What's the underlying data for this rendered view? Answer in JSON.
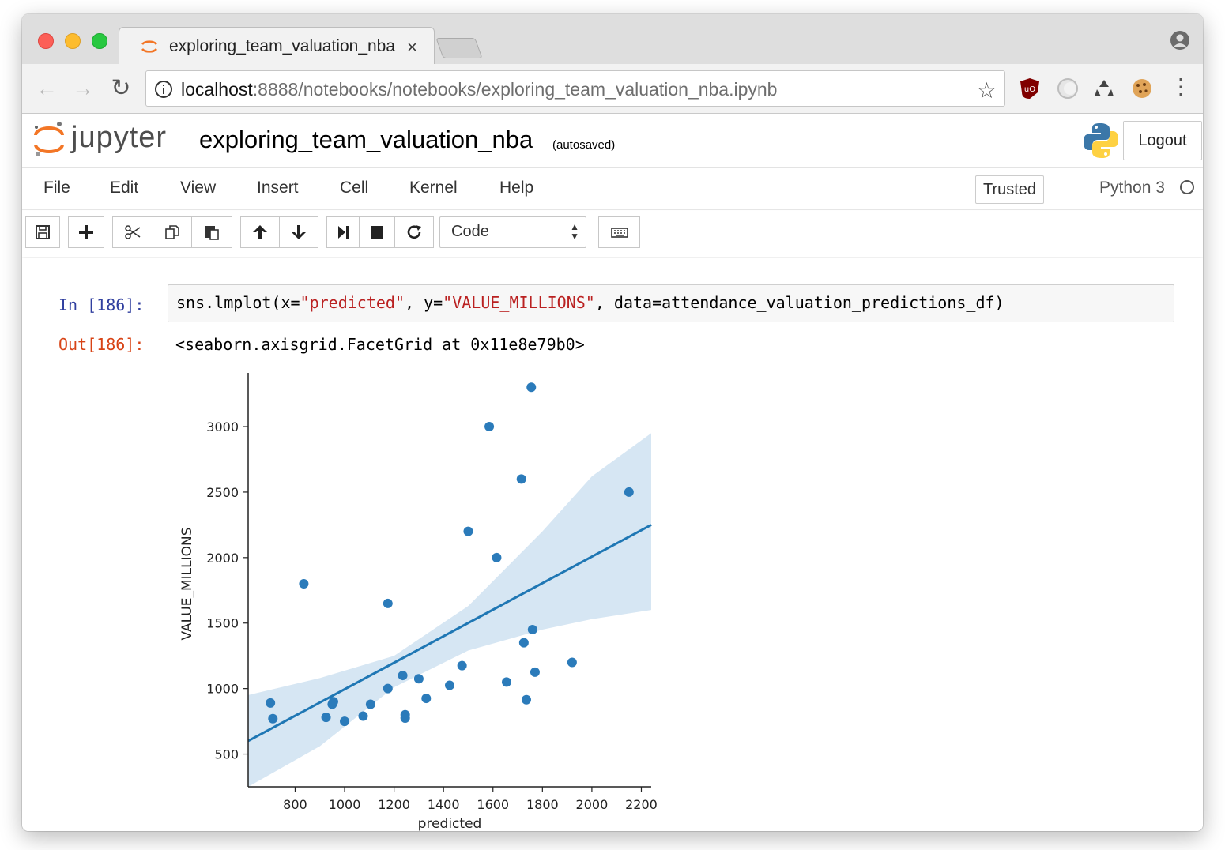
{
  "browser": {
    "tab_title": "exploring_team_valuation_nba",
    "tab_close": "×",
    "url_host": "localhost",
    "url_rest": ":8888/notebooks/notebooks/exploring_team_valuation_nba.ipynb"
  },
  "jupyter": {
    "wordmark": "jupyter",
    "notebook_name": "exploring_team_valuation_nba",
    "autosave_status": "(autosaved)",
    "logout_label": "Logout"
  },
  "menubar": {
    "items": [
      "File",
      "Edit",
      "View",
      "Insert",
      "Cell",
      "Kernel",
      "Help"
    ],
    "trusted_label": "Trusted",
    "kernel_name": "Python 3"
  },
  "toolbar": {
    "cell_type": "Code"
  },
  "cell": {
    "in_prompt": "In [186]:",
    "code_prefix": "sns.lmplot(x=",
    "code_x": "\"predicted\"",
    "code_mid": ", y=",
    "code_y": "\"VALUE_MILLIONS\"",
    "code_suffix": ", data=attendance_valuation_predictions_df)",
    "out_prompt": "Out[186]:",
    "out_text": "<seaborn.axisgrid.FacetGrid at 0x11e8e79b0>"
  },
  "colors": {
    "point": "#2b7bba",
    "line": "#1f77b4",
    "ci_band": "#d6e6f3"
  },
  "chart_data": {
    "type": "scatter",
    "title": "",
    "xlabel": "predicted",
    "ylabel": "VALUE_MILLIONS",
    "xlim": [
      610,
      2240
    ],
    "ylim": [
      250,
      3350
    ],
    "x_ticks": [
      800,
      1000,
      1200,
      1400,
      1600,
      1800,
      2000,
      2200
    ],
    "y_ticks": [
      500,
      1000,
      1500,
      2000,
      2500,
      3000
    ],
    "points": [
      {
        "x": 700,
        "y": 890
      },
      {
        "x": 710,
        "y": 770
      },
      {
        "x": 835,
        "y": 1800
      },
      {
        "x": 925,
        "y": 780
      },
      {
        "x": 950,
        "y": 880
      },
      {
        "x": 955,
        "y": 900
      },
      {
        "x": 1000,
        "y": 750
      },
      {
        "x": 1075,
        "y": 790
      },
      {
        "x": 1105,
        "y": 880
      },
      {
        "x": 1175,
        "y": 1000
      },
      {
        "x": 1175,
        "y": 1650
      },
      {
        "x": 1235,
        "y": 1100
      },
      {
        "x": 1245,
        "y": 800
      },
      {
        "x": 1245,
        "y": 775
      },
      {
        "x": 1300,
        "y": 1075
      },
      {
        "x": 1330,
        "y": 925
      },
      {
        "x": 1425,
        "y": 1025
      },
      {
        "x": 1475,
        "y": 1175
      },
      {
        "x": 1500,
        "y": 2200
      },
      {
        "x": 1585,
        "y": 3000
      },
      {
        "x": 1615,
        "y": 2000
      },
      {
        "x": 1655,
        "y": 1050
      },
      {
        "x": 1715,
        "y": 2600
      },
      {
        "x": 1725,
        "y": 1350
      },
      {
        "x": 1735,
        "y": 915
      },
      {
        "x": 1755,
        "y": 3300
      },
      {
        "x": 1760,
        "y": 1450
      },
      {
        "x": 1770,
        "y": 1125
      },
      {
        "x": 1920,
        "y": 1200
      },
      {
        "x": 2150,
        "y": 2500
      }
    ],
    "regression_line": [
      {
        "x": 610,
        "y": 600
      },
      {
        "x": 2240,
        "y": 2250
      }
    ],
    "ci_upper": [
      {
        "x": 610,
        "y": 950
      },
      {
        "x": 900,
        "y": 1080
      },
      {
        "x": 1200,
        "y": 1250
      },
      {
        "x": 1500,
        "y": 1630
      },
      {
        "x": 1800,
        "y": 2200
      },
      {
        "x": 2000,
        "y": 2620
      },
      {
        "x": 2240,
        "y": 2950
      }
    ],
    "ci_lower": [
      {
        "x": 610,
        "y": 250
      },
      {
        "x": 900,
        "y": 560
      },
      {
        "x": 1200,
        "y": 1010
      },
      {
        "x": 1500,
        "y": 1290
      },
      {
        "x": 1800,
        "y": 1450
      },
      {
        "x": 2000,
        "y": 1530
      },
      {
        "x": 2240,
        "y": 1600
      }
    ]
  }
}
